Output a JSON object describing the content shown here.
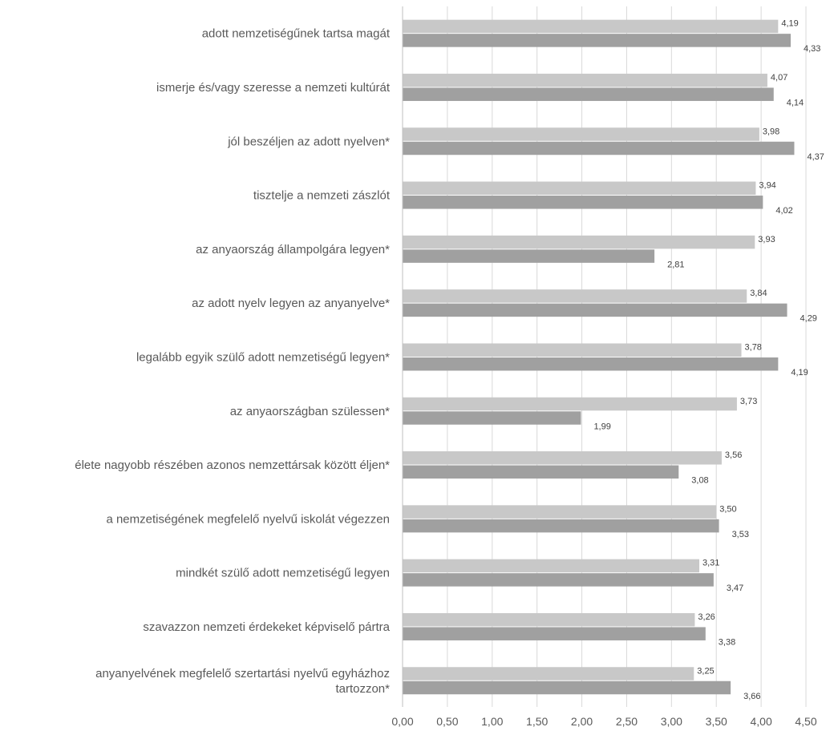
{
  "chart_data": {
    "type": "bar",
    "orientation": "horizontal",
    "categories": [
      "adott nemzetiségűnek tartsa magát",
      "ismerje és/vagy szeresse a nemzeti kultúrát",
      "jól beszéljen az adott nyelven*",
      "tisztelje a nemzeti zászlót",
      "az anyaország állampolgára legyen*",
      "az adott nyelv legyen az anyanyelve*",
      "legalább egyik szülő adott nemzetiségű legyen*",
      "az anyaországban szülessen*",
      "élete nagyobb részében azonos nemzettársak között éljen*",
      "a nemzetiségének megfelelő nyelvű iskolát végezzen",
      "mindkét szülő adott nemzetiségű legyen",
      "szavazzon nemzeti érdekeket képviselő pártra",
      "anyanyelvének megfelelő szertartási nyelvű egyházhoz tartozzon*"
    ],
    "category_lines": [
      [
        "adott nemzetiségűnek tartsa magát"
      ],
      [
        "ismerje és/vagy szeresse a nemzeti kultúrát"
      ],
      [
        "jól beszéljen az adott nyelven*"
      ],
      [
        "tisztelje a nemzeti zászlót"
      ],
      [
        "az anyaország állampolgára legyen*"
      ],
      [
        "az adott nyelv legyen az anyanyelve*"
      ],
      [
        "legalább egyik szülő adott nemzetiségű legyen*"
      ],
      [
        "az anyaországban szülessen*"
      ],
      [
        "élete nagyobb részében azonos nemzettársak között éljen*"
      ],
      [
        "a nemzetiségének megfelelő nyelvű iskolát végezzen"
      ],
      [
        "mindkét szülő adott nemzetiségű legyen"
      ],
      [
        "szavazzon nemzeti érdekeket képviselő pártra"
      ],
      [
        "anyanyelvének megfelelő szertartási nyelvű egyházhoz",
        "tartozzon*"
      ]
    ],
    "series": [
      {
        "color": "#c8c8c8",
        "values": [
          4.19,
          4.07,
          3.98,
          3.94,
          3.93,
          3.84,
          3.78,
          3.73,
          3.56,
          3.5,
          3.31,
          3.26,
          3.25
        ],
        "labels": [
          "4,19",
          "4,07",
          "3,98",
          "3,94",
          "3,93",
          "3,84",
          "3,78",
          "3,73",
          "3,56",
          "3,50",
          "3,31",
          "3,26",
          "3,25"
        ]
      },
      {
        "color": "#a0a0a0",
        "values": [
          4.33,
          4.14,
          4.37,
          4.02,
          2.81,
          4.29,
          4.19,
          1.99,
          3.08,
          3.53,
          3.47,
          3.38,
          3.66
        ],
        "labels": [
          "4,33",
          "4,14",
          "4,37",
          "4,02",
          "2,81",
          "4,29",
          "4,19",
          "1,99",
          "3,08",
          "3,53",
          "3,47",
          "3,38",
          "3,66"
        ]
      }
    ],
    "xlim": [
      0,
      4.5
    ],
    "xticks": [
      0,
      0.5,
      1,
      1.5,
      2,
      2.5,
      3,
      3.5,
      4,
      4.5
    ],
    "xtick_labels": [
      "0,00",
      "0,50",
      "1,00",
      "1,50",
      "2,00",
      "2,50",
      "3,00",
      "3,50",
      "4,00",
      "4,50"
    ],
    "title": "",
    "xlabel": "",
    "ylabel": "",
    "grid": "vertical",
    "legend": "none",
    "colors": {
      "grid": "#d9d9d9",
      "axis": "#bfbfbf",
      "text": "#595959",
      "data_label": "#404040"
    }
  }
}
